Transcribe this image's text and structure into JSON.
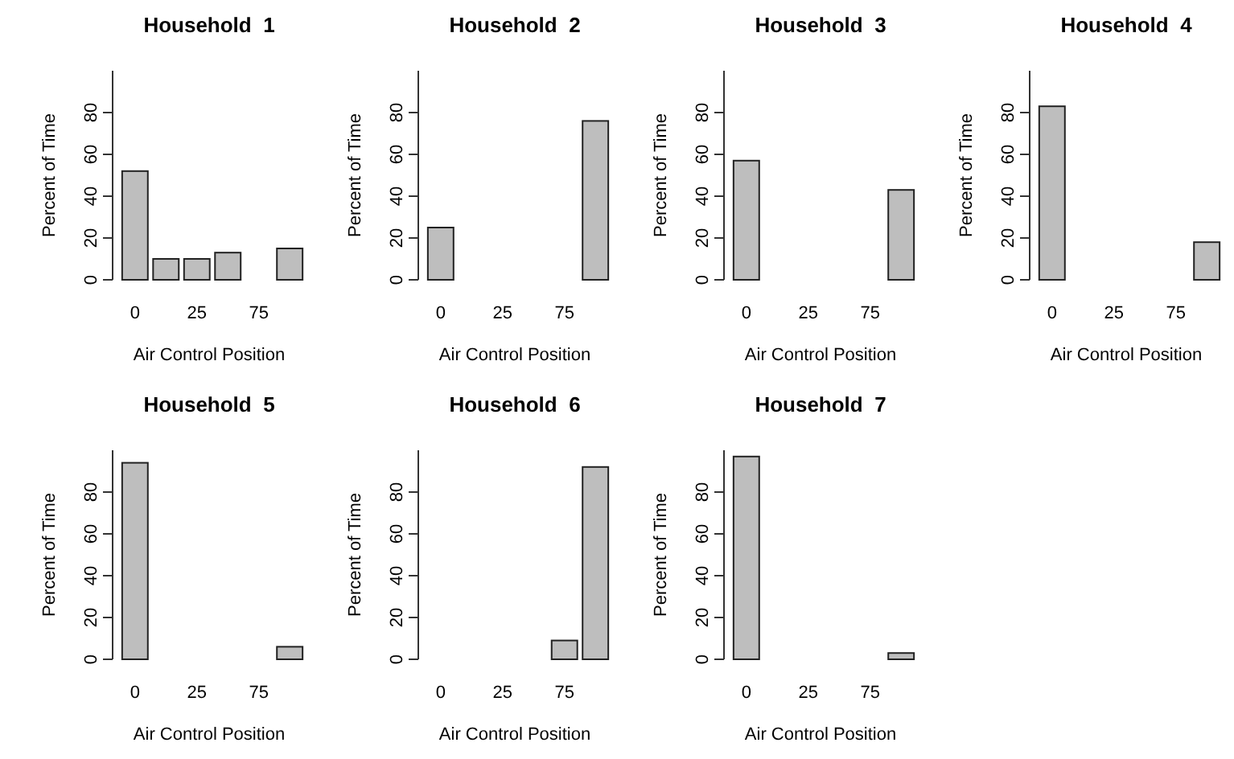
{
  "chart_data": [
    {
      "type": "bar",
      "title": "Household  1",
      "xlabel": "Air Control Position",
      "ylabel": "Percent of Time",
      "categories": [
        "0",
        null,
        "25",
        null,
        "75",
        null
      ],
      "values": [
        52,
        10,
        10,
        13,
        0,
        15
      ],
      "color": "#bebebe",
      "ylim": [
        0,
        100
      ],
      "yticks": [
        0,
        20,
        40,
        60,
        80
      ],
      "grid": false
    },
    {
      "type": "bar",
      "title": "Household  2",
      "xlabel": "Air Control Position",
      "ylabel": "Percent of Time",
      "categories": [
        "0",
        null,
        "25",
        null,
        "75",
        null
      ],
      "values": [
        25,
        0,
        0,
        0,
        0,
        76
      ],
      "color": "#bebebe",
      "ylim": [
        0,
        100
      ],
      "yticks": [
        0,
        20,
        40,
        60,
        80
      ],
      "grid": false
    },
    {
      "type": "bar",
      "title": "Household  3",
      "xlabel": "Air Control Position",
      "ylabel": "Percent of Time",
      "categories": [
        "0",
        null,
        "25",
        null,
        "75",
        null
      ],
      "values": [
        57,
        0,
        0,
        0,
        0,
        43
      ],
      "color": "#bebebe",
      "ylim": [
        0,
        100
      ],
      "yticks": [
        0,
        20,
        40,
        60,
        80
      ],
      "grid": false
    },
    {
      "type": "bar",
      "title": "Household  4",
      "xlabel": "Air Control Position",
      "ylabel": "Percent of Time",
      "categories": [
        "0",
        null,
        "25",
        null,
        "75",
        null
      ],
      "values": [
        83,
        0,
        0,
        0,
        0,
        18
      ],
      "color": "#bebebe",
      "ylim": [
        0,
        100
      ],
      "yticks": [
        0,
        20,
        40,
        60,
        80
      ],
      "grid": false
    },
    {
      "type": "bar",
      "title": "Household  5",
      "xlabel": "Air Control Position",
      "ylabel": "Percent of Time",
      "categories": [
        "0",
        null,
        "25",
        null,
        "75",
        null
      ],
      "values": [
        94,
        0,
        0,
        0,
        0,
        6
      ],
      "color": "#bebebe",
      "ylim": [
        0,
        100
      ],
      "yticks": [
        0,
        20,
        40,
        60,
        80
      ],
      "grid": false
    },
    {
      "type": "bar",
      "title": "Household  6",
      "xlabel": "Air Control Position",
      "ylabel": "Percent of Time",
      "categories": [
        "0",
        null,
        "25",
        null,
        "75",
        null
      ],
      "values": [
        0,
        0,
        0,
        0,
        9,
        92
      ],
      "color": "#bebebe",
      "ylim": [
        0,
        100
      ],
      "yticks": [
        0,
        20,
        40,
        60,
        80
      ],
      "grid": false
    },
    {
      "type": "bar",
      "title": "Household  7",
      "xlabel": "Air Control Position",
      "ylabel": "Percent of Time",
      "categories": [
        "0",
        null,
        "25",
        null,
        "75",
        null
      ],
      "values": [
        97,
        0,
        0,
        0,
        0,
        3
      ],
      "color": "#bebebe",
      "ylim": [
        0,
        100
      ],
      "yticks": [
        0,
        20,
        40,
        60,
        80
      ],
      "grid": false
    }
  ]
}
